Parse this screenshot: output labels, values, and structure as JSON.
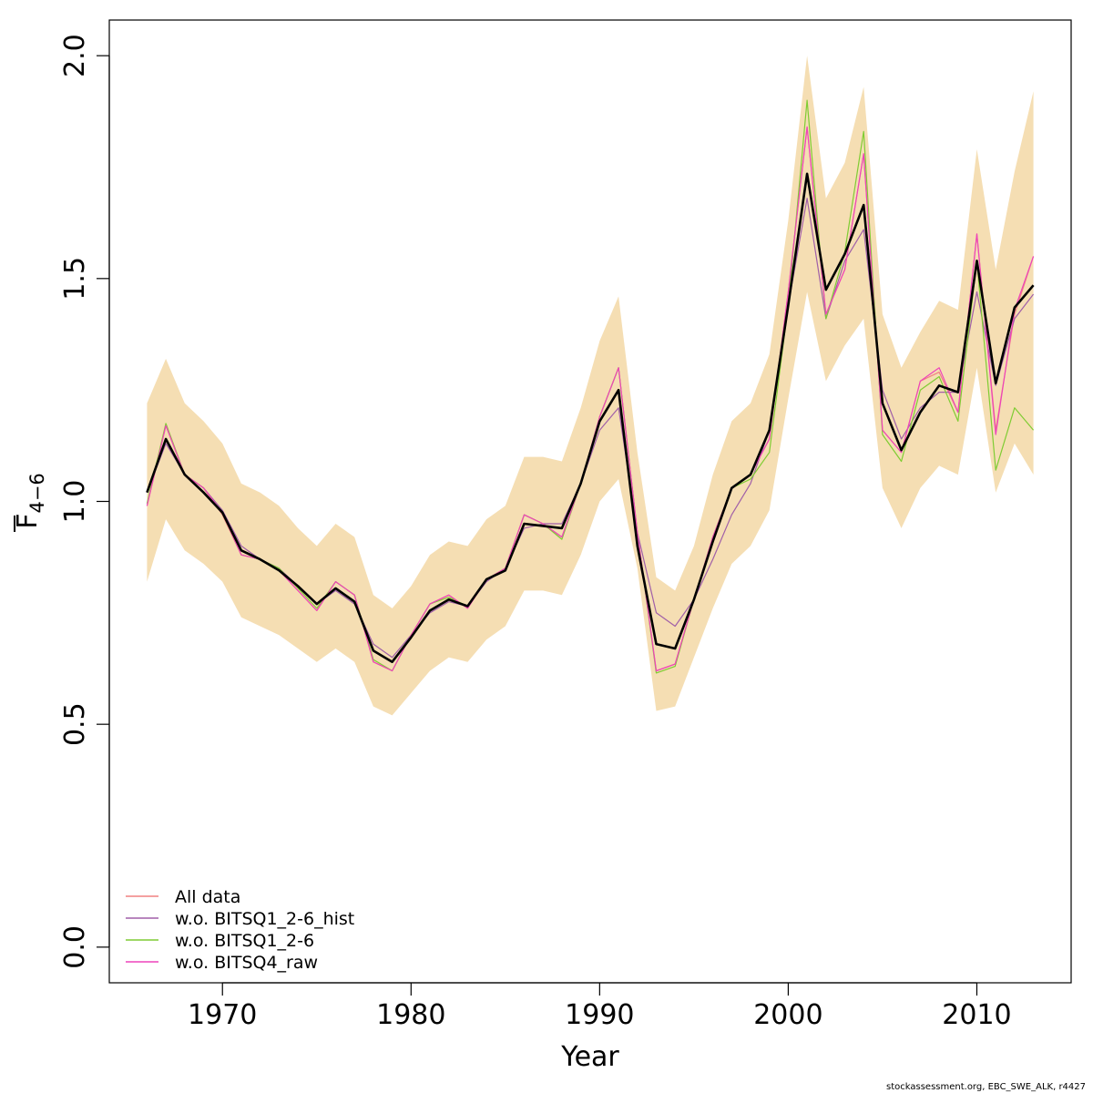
{
  "chart_data": {
    "type": "line",
    "xlabel": "Year",
    "ylabel_main": "F",
    "ylabel_sub": "4−6",
    "ylim": [
      -0.08,
      2.08
    ],
    "xlim": [
      1964,
      2015
    ],
    "x_ticks": [
      1970,
      1980,
      1990,
      2000,
      2010
    ],
    "x_tick_labels": [
      "1970",
      "1980",
      "1990",
      "2000",
      "2010"
    ],
    "y_ticks": [
      0.0,
      0.5,
      1.0,
      1.5,
      2.0
    ],
    "y_tick_labels": [
      "0.0",
      "0.5",
      "1.0",
      "1.5",
      "2.0"
    ],
    "legend_position": "bottom-left",
    "credit": "stockassessment.org, EBC_SWE_ALK, r4427",
    "years": [
      1966,
      1967,
      1968,
      1969,
      1970,
      1971,
      1972,
      1973,
      1974,
      1975,
      1976,
      1977,
      1978,
      1979,
      1980,
      1981,
      1982,
      1983,
      1984,
      1985,
      1986,
      1987,
      1988,
      1989,
      1990,
      1991,
      1992,
      1993,
      1994,
      1995,
      1996,
      1997,
      1998,
      1999,
      2000,
      2001,
      2002,
      2003,
      2004,
      2005,
      2006,
      2007,
      2008,
      2009,
      2010,
      2011,
      2012,
      2013
    ],
    "band": {
      "color": "#f5deb3",
      "upper": [
        1.22,
        1.32,
        1.22,
        1.18,
        1.13,
        1.04,
        1.02,
        0.99,
        0.94,
        0.9,
        0.95,
        0.92,
        0.79,
        0.76,
        0.81,
        0.88,
        0.91,
        0.9,
        0.96,
        0.99,
        1.1,
        1.1,
        1.09,
        1.21,
        1.36,
        1.46,
        1.11,
        0.83,
        0.8,
        0.9,
        1.06,
        1.18,
        1.22,
        1.33,
        1.63,
        2.0,
        1.68,
        1.76,
        1.93,
        1.42,
        1.3,
        1.38,
        1.45,
        1.43,
        1.79,
        1.52,
        1.74,
        1.92
      ],
      "lower": [
        0.82,
        0.96,
        0.89,
        0.86,
        0.82,
        0.74,
        0.72,
        0.7,
        0.67,
        0.64,
        0.67,
        0.64,
        0.54,
        0.52,
        0.57,
        0.62,
        0.65,
        0.64,
        0.69,
        0.72,
        0.8,
        0.8,
        0.79,
        0.88,
        1.0,
        1.05,
        0.85,
        0.53,
        0.54,
        0.65,
        0.76,
        0.86,
        0.9,
        0.98,
        1.23,
        1.47,
        1.27,
        1.35,
        1.41,
        1.03,
        0.94,
        1.03,
        1.08,
        1.06,
        1.3,
        1.02,
        1.13,
        1.06
      ]
    },
    "main_line": {
      "color": "#000000",
      "values": [
        1.02,
        1.14,
        1.06,
        1.02,
        0.975,
        0.89,
        0.87,
        0.845,
        0.81,
        0.77,
        0.805,
        0.775,
        0.665,
        0.64,
        0.695,
        0.755,
        0.78,
        0.765,
        0.825,
        0.845,
        0.95,
        0.945,
        0.94,
        1.04,
        1.18,
        1.25,
        0.9,
        0.68,
        0.67,
        0.78,
        0.91,
        1.03,
        1.06,
        1.16,
        1.44,
        1.735,
        1.475,
        1.555,
        1.665,
        1.22,
        1.115,
        1.2,
        1.26,
        1.245,
        1.54,
        1.265,
        1.435,
        1.485
      ]
    },
    "series": [
      {
        "name": "All data",
        "color": "#f08080",
        "values": [
          0.99,
          1.17,
          1.06,
          1.03,
          0.97,
          0.88,
          0.87,
          0.845,
          0.8,
          0.755,
          0.82,
          0.79,
          0.64,
          0.62,
          0.7,
          0.77,
          0.79,
          0.76,
          0.825,
          0.85,
          0.97,
          0.95,
          0.92,
          1.04,
          1.19,
          1.3,
          0.93,
          0.62,
          0.635,
          0.78,
          0.92,
          1.03,
          1.06,
          1.14,
          1.47,
          1.84,
          1.42,
          1.52,
          1.78,
          1.16,
          1.11,
          1.27,
          1.29,
          1.2,
          1.6,
          1.16,
          1.42,
          1.55
        ]
      },
      {
        "name": "w.o. BITSQ1_2-6_hist",
        "color": "#a05fa8",
        "values": [
          1.02,
          1.13,
          1.06,
          1.03,
          0.98,
          0.9,
          0.87,
          0.85,
          0.81,
          0.77,
          0.8,
          0.77,
          0.68,
          0.65,
          0.7,
          0.75,
          0.775,
          0.765,
          0.82,
          0.85,
          0.94,
          0.95,
          0.95,
          1.04,
          1.16,
          1.21,
          0.93,
          0.75,
          0.72,
          0.78,
          0.87,
          0.97,
          1.04,
          1.16,
          1.44,
          1.68,
          1.41,
          1.54,
          1.61,
          1.25,
          1.14,
          1.21,
          1.245,
          1.245,
          1.47,
          1.26,
          1.41,
          1.465
        ]
      },
      {
        "name": "w.o. BITSQ1_2-6",
        "color": "#7fcc33",
        "values": [
          0.995,
          1.175,
          1.06,
          1.03,
          0.975,
          0.88,
          0.87,
          0.85,
          0.805,
          0.76,
          0.82,
          0.79,
          0.645,
          0.62,
          0.7,
          0.77,
          0.785,
          0.765,
          0.825,
          0.85,
          0.97,
          0.95,
          0.915,
          1.04,
          1.19,
          1.3,
          0.93,
          0.615,
          0.63,
          0.78,
          0.92,
          1.03,
          1.05,
          1.11,
          1.44,
          1.9,
          1.41,
          1.56,
          1.83,
          1.15,
          1.09,
          1.25,
          1.28,
          1.18,
          1.54,
          1.07,
          1.21,
          1.16
        ]
      },
      {
        "name": "w.o. BITSQ4_raw",
        "color": "#ee44bb",
        "values": [
          0.99,
          1.17,
          1.06,
          1.03,
          0.975,
          0.88,
          0.87,
          0.845,
          0.8,
          0.755,
          0.82,
          0.79,
          0.64,
          0.62,
          0.7,
          0.77,
          0.79,
          0.76,
          0.825,
          0.85,
          0.97,
          0.95,
          0.92,
          1.04,
          1.19,
          1.3,
          0.93,
          0.62,
          0.635,
          0.78,
          0.92,
          1.03,
          1.06,
          1.14,
          1.47,
          1.84,
          1.42,
          1.52,
          1.78,
          1.16,
          1.11,
          1.27,
          1.3,
          1.2,
          1.6,
          1.15,
          1.43,
          1.55
        ]
      }
    ]
  }
}
